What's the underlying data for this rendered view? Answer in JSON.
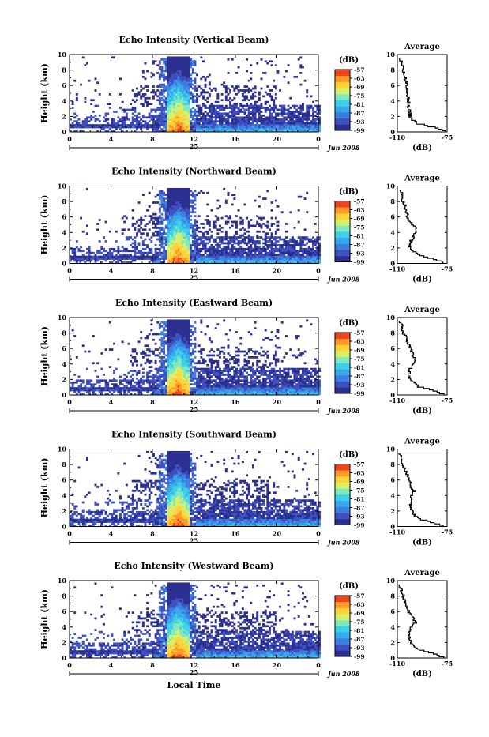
{
  "figure": {
    "xlabel": "Local Time",
    "ylabel": "Height (km)",
    "date_day": "25",
    "date_month": "Jun 2008",
    "colorbar_unit": "(dB)",
    "colorbar_ticks": [
      "-57",
      "-63",
      "-69",
      "-75",
      "-81",
      "-87",
      "-93",
      "-99"
    ],
    "avg_title": "Average",
    "avg_xlabel": "(dB)",
    "avg_xticks": [
      "-110",
      "-75"
    ],
    "time_ticks": [
      "0",
      "4",
      "8",
      "12",
      "16",
      "20",
      "0"
    ],
    "height_ticks": [
      "0",
      "2",
      "4",
      "6",
      "8",
      "10"
    ],
    "avg_height_ticks": [
      "0",
      "2",
      "4",
      "6",
      "8",
      "10"
    ],
    "colors": [
      "#2b2f8f",
      "#3f4fbf",
      "#3d7fe0",
      "#38a8ee",
      "#3ed0e8",
      "#7fe9c0",
      "#d8ef68",
      "#ffd23a",
      "#ff9a2a",
      "#f2441c"
    ]
  },
  "chart_data": [
    {
      "type": "heatmap",
      "title": "Echo Intensity (Vertical Beam)",
      "beam": "vertical",
      "xlabel": "Local Time",
      "ylabel": "Height (km)",
      "xlim": [
        0,
        24
      ],
      "ylim": [
        0,
        10
      ],
      "clim": [
        -99,
        -57
      ],
      "avg_profile": {
        "xlim": [
          -110,
          -75
        ],
        "heights": [
          0,
          0.5,
          1,
          1.5,
          2,
          3,
          4,
          5,
          6,
          7,
          8,
          9,
          9.5
        ],
        "values": [
          -76,
          -84,
          -96,
          -100,
          -101,
          -102,
          -102,
          -103,
          -103,
          -105,
          -106,
          -107,
          -109
        ]
      }
    },
    {
      "type": "heatmap",
      "title": "Echo Intensity (Northward Beam)",
      "beam": "northward",
      "xlabel": "Local Time",
      "ylabel": "Height (km)",
      "xlim": [
        0,
        24
      ],
      "ylim": [
        0,
        10
      ],
      "clim": [
        -99,
        -57
      ],
      "avg_profile": {
        "xlim": [
          -110,
          -75
        ],
        "heights": [
          0,
          0.5,
          1,
          1.5,
          2,
          3,
          4,
          4.5,
          5,
          6,
          7,
          8,
          9,
          9.5
        ],
        "values": [
          -77,
          -85,
          -95,
          -99,
          -101,
          -100,
          -97,
          -96,
          -100,
          -103,
          -104,
          -106,
          -107,
          -109
        ]
      }
    },
    {
      "type": "heatmap",
      "title": "Echo Intensity (Eastward Beam)",
      "beam": "eastward",
      "xlabel": "Local Time",
      "ylabel": "Height (km)",
      "xlim": [
        0,
        24
      ],
      "ylim": [
        0,
        10
      ],
      "clim": [
        -99,
        -57
      ],
      "avg_profile": {
        "xlim": [
          -110,
          -75
        ],
        "heights": [
          0,
          0.5,
          1,
          2,
          3,
          4,
          4.5,
          5,
          6,
          7,
          8,
          9,
          9.5
        ],
        "values": [
          -78,
          -84,
          -95,
          -101,
          -102,
          -99,
          -97,
          -99,
          -101,
          -103,
          -106,
          -107,
          -109
        ]
      }
    },
    {
      "type": "heatmap",
      "title": "Echo Intensity (Southward Beam)",
      "beam": "southward",
      "xlabel": "Local Time",
      "ylabel": "Height (km)",
      "xlim": [
        0,
        24
      ],
      "ylim": [
        0,
        10
      ],
      "clim": [
        -99,
        -57
      ],
      "avg_profile": {
        "xlim": [
          -110,
          -75
        ],
        "heights": [
          0,
          0.5,
          1,
          2,
          3,
          4,
          4.5,
          5,
          6,
          7,
          8,
          9,
          9.5
        ],
        "values": [
          -78,
          -86,
          -96,
          -100,
          -101,
          -100,
          -98,
          -100,
          -102,
          -104,
          -106,
          -108,
          -109
        ]
      }
    },
    {
      "type": "heatmap",
      "title": "Echo Intensity (Westward Beam)",
      "beam": "westward",
      "xlabel": "Local Time",
      "ylabel": "Height (km)",
      "xlim": [
        0,
        24
      ],
      "ylim": [
        0,
        10
      ],
      "clim": [
        -99,
        -57
      ],
      "avg_profile": {
        "xlim": [
          -110,
          -75
        ],
        "heights": [
          0,
          0.5,
          1,
          2,
          3,
          4,
          4.5,
          5,
          6,
          7,
          8,
          9,
          9.5
        ],
        "values": [
          -77,
          -85,
          -95,
          -101,
          -102,
          -100,
          -97,
          -99,
          -102,
          -104,
          -106,
          -108,
          -109
        ]
      }
    }
  ]
}
